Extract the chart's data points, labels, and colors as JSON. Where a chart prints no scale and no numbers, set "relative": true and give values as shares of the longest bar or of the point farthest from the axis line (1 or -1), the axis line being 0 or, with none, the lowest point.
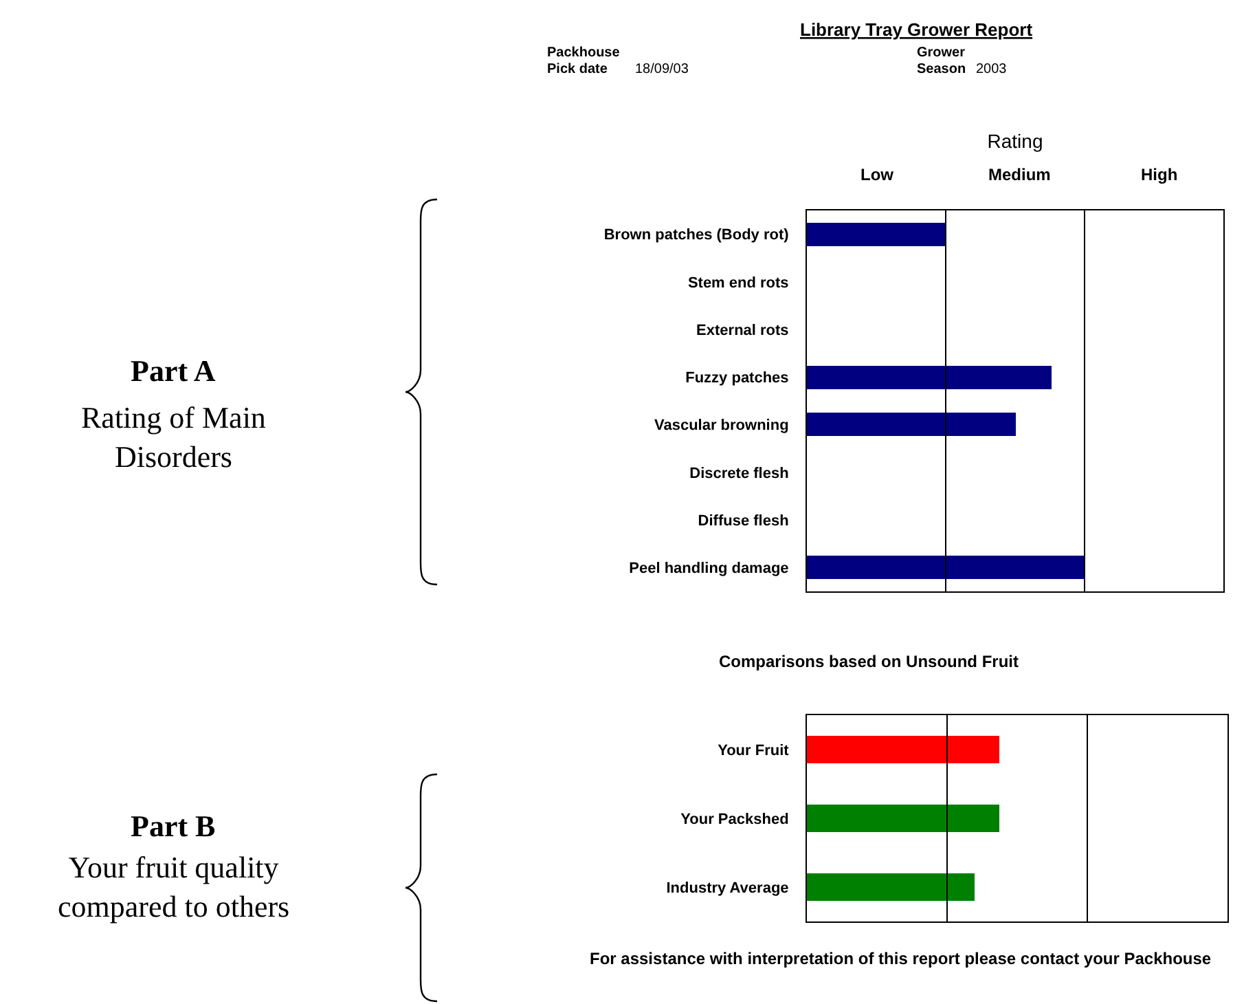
{
  "chart_data": [
    {
      "type": "bar",
      "orientation": "horizontal",
      "xlabel": "Rating",
      "relative": true,
      "categories": [
        "Brown patches (Body rot)",
        "Stem end rots",
        "External rots",
        "Fuzzy patches",
        "Vascular browning",
        "Discrete flesh",
        "Diffuse flesh",
        "Peel handling damage"
      ],
      "values": [
        0.5,
        0,
        0,
        0.88,
        0.75,
        0,
        0,
        1
      ],
      "color": "#000080",
      "ref_lines": [
        {
          "axis": "x",
          "value": 0.5
        },
        {
          "axis": "x",
          "value": 1
        }
      ],
      "annotations": [
        "Library Tray Grower Report",
        "Packhouse",
        "Pick date",
        "18/09/03",
        "Grower",
        "Season",
        "2003",
        "Part A",
        "Rating of Main Disorders",
        "Low",
        "Medium",
        "High"
      ]
    },
    {
      "type": "bar",
      "orientation": "horizontal",
      "title": "Comparisons based on Unsound Fruit",
      "relative": true,
      "categories": [
        "Your Fruit",
        "Your Packshed",
        "Industry Average"
      ],
      "values": [
        1,
        1,
        0.87
      ],
      "colors": [
        "#ff0000",
        "#008000",
        "#008000"
      ],
      "ref_lines": [
        {
          "axis": "x",
          "value": 0.73
        },
        {
          "axis": "x",
          "value": 1.46
        }
      ],
      "annotations": [
        "Part B",
        "Your fruit quality compared to others",
        "For assistance with interpretation of this report please contact your Packhouse"
      ]
    }
  ]
}
